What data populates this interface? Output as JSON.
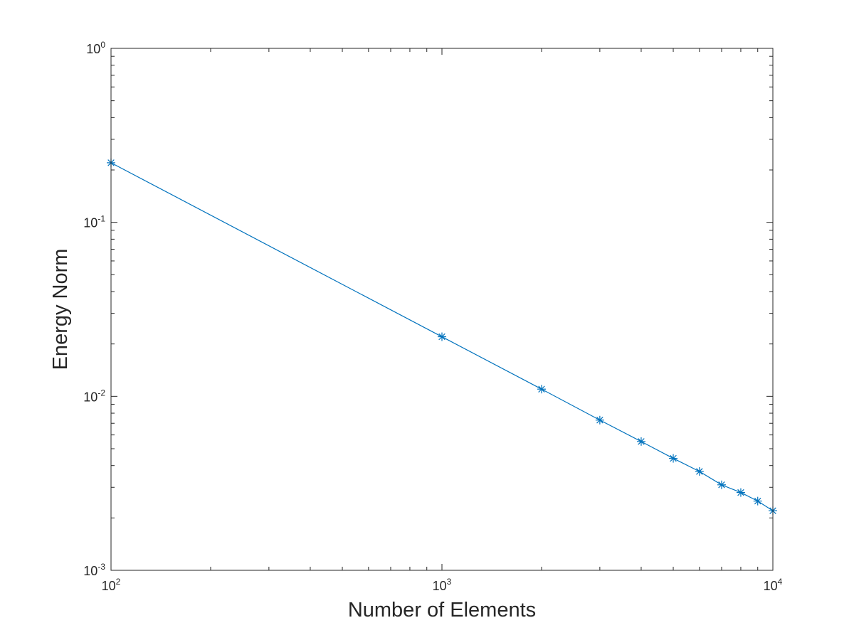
{
  "chart_data": {
    "type": "line",
    "title": "",
    "xlabel": "Number of Elements",
    "ylabel": "Energy Norm",
    "xscale": "log",
    "yscale": "log",
    "xlim": [
      100,
      10000
    ],
    "ylim": [
      0.001,
      1
    ],
    "grid": false,
    "legend": "none",
    "marker": "asterisk",
    "line_color": "#0072BD",
    "x_ticks": [
      {
        "base": "10",
        "exp": "2",
        "value": 100
      },
      {
        "base": "10",
        "exp": "3",
        "value": 1000
      },
      {
        "base": "10",
        "exp": "4",
        "value": 10000
      }
    ],
    "y_ticks": [
      {
        "base": "10",
        "exp": "-3",
        "value": 0.001
      },
      {
        "base": "10",
        "exp": "-2",
        "value": 0.01
      },
      {
        "base": "10",
        "exp": "-1",
        "value": 0.1
      },
      {
        "base": "10",
        "exp": "0",
        "value": 1
      }
    ],
    "series": [
      {
        "x": [
          100,
          1000,
          2000,
          3000,
          4000,
          5000,
          6000,
          7000,
          8000,
          9000,
          10000
        ],
        "y": [
          0.22,
          0.022,
          0.011,
          0.0073,
          0.0055,
          0.0044,
          0.0037,
          0.0031,
          0.0028,
          0.0025,
          0.0022
        ]
      }
    ]
  }
}
